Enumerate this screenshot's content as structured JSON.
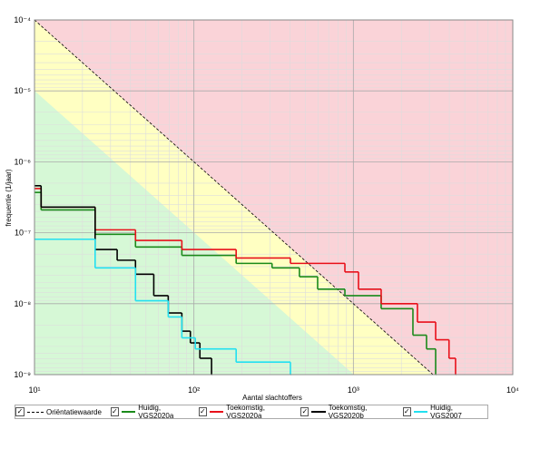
{
  "chart_data": {
    "type": "line",
    "y_label": "frequentie (1/jaar)",
    "x_label": "Aantal slachtoffers",
    "log_x": true,
    "log_y": true,
    "grid": true,
    "xlim": [
      10,
      10000
    ],
    "ylim": [
      1e-09,
      0.0001
    ],
    "xticks": [
      {
        "value": 10,
        "label": "10¹"
      },
      {
        "value": 100,
        "label": "10²"
      },
      {
        "value": 1000,
        "label": "10³"
      },
      {
        "value": 10000,
        "label": "10⁴"
      }
    ],
    "yticks": [
      {
        "value": 0.0001,
        "label": "10⁻⁴"
      },
      {
        "value": 1e-05,
        "label": "10⁻⁵"
      },
      {
        "value": 1e-06,
        "label": "10⁻⁶"
      },
      {
        "value": 1e-07,
        "label": "10⁻⁷"
      },
      {
        "value": 1e-08,
        "label": "10⁻⁸"
      },
      {
        "value": 1e-09,
        "label": "10⁻⁹"
      }
    ],
    "series": [
      {
        "name": "Oriëntatiewaarde",
        "color": "#000000",
        "linestyle": "dashed",
        "drawstyle": "default",
        "x": [
          10,
          100,
          1000,
          3162
        ],
        "values": [
          0.0001,
          1e-06,
          1e-08,
          1e-09
        ]
      },
      {
        "name": "Huidig, VGS2020a",
        "color": "#1a8a1a",
        "linestyle": "solid",
        "drawstyle": "steps-post",
        "x": [
          10,
          11,
          24,
          43,
          84,
          184,
          309,
          459,
          597,
          885,
          1494,
          2364,
          2877,
          3282
        ],
        "values": [
          3.7e-07,
          2.1e-07,
          9.5e-08,
          6.3e-08,
          4.8e-08,
          3.7e-08,
          3.2e-08,
          2.4e-08,
          1.6e-08,
          1.3e-08,
          8.5e-09,
          3.6e-09,
          2.3e-09,
          1e-09
        ]
      },
      {
        "name": "Toekomstig, VGS2020a",
        "color": "#e8101a",
        "linestyle": "solid",
        "drawstyle": "steps-post",
        "x": [
          10,
          11,
          24,
          43,
          84,
          184,
          403,
          885,
          1077,
          1494,
          2523,
          3282,
          3981,
          4375
        ],
        "values": [
          4.2e-07,
          2.3e-07,
          1.1e-07,
          7.8e-08,
          5.8e-08,
          4.4e-08,
          3.7e-08,
          2.8e-08,
          1.6e-08,
          1e-08,
          5.5e-09,
          3.1e-09,
          1.7e-09,
          1e-09
        ]
      },
      {
        "name": "Toekomstig, VGS2020b",
        "color": "#000000",
        "linestyle": "solid",
        "drawstyle": "steps-post",
        "x": [
          10,
          11,
          24,
          33,
          43,
          56,
          69,
          84,
          95,
          109,
          129
        ],
        "values": [
          4.6e-07,
          2.3e-07,
          5.8e-08,
          4.1e-08,
          2.6e-08,
          1.3e-08,
          7.4e-09,
          4.1e-09,
          2.8e-09,
          1.7e-09,
          1e-09
        ]
      },
      {
        "name": "Huidig, VGS2007",
        "color": "#22e0f0",
        "linestyle": "solid",
        "drawstyle": "steps-post",
        "x": [
          10,
          24,
          43,
          69,
          84,
          102,
          184,
          403
        ],
        "values": [
          8.1e-08,
          3.2e-08,
          1.1e-08,
          6.5e-09,
          3.3e-09,
          2.3e-09,
          1.5e-09,
          1e-09
        ]
      }
    ]
  }
}
